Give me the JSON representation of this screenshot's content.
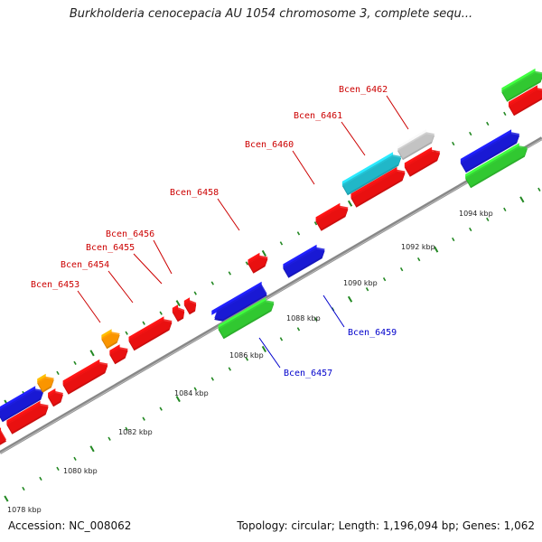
{
  "title": "Burkholderia cenocepacia AU 1054 chromosome 3, complete sequ...",
  "footer": {
    "accession": "Accession: NC_008062",
    "summary": "Topology: circular; Length: 1,196,094 bp; Genes: 1,062"
  },
  "colors": {
    "red": "#ee1111",
    "blue": "#1a1ad8",
    "green": "#33cc33",
    "orange": "#ff9900",
    "cyan": "#22bbcc",
    "gray": "#c8c8c8",
    "backbone": "#888888",
    "tick": "#228822",
    "label_red": "#cc0000",
    "label_blue": "#0000cc"
  },
  "chart_data": {
    "type": "genome-map",
    "axis": {
      "unit": "kbp",
      "tick_labels": [
        "1078 kbp",
        "1080 kbp",
        "1082 kbp",
        "1084 kbp",
        "1086 kbp",
        "1088 kbp",
        "1090 kbp",
        "1092 kbp",
        "1094 kbp"
      ]
    },
    "labels": [
      {
        "text": "Bcen_6453",
        "color": "label_red"
      },
      {
        "text": "Bcen_6454",
        "color": "label_red"
      },
      {
        "text": "Bcen_6455",
        "color": "label_red"
      },
      {
        "text": "Bcen_6456",
        "color": "label_red"
      },
      {
        "text": "Bcen_6458",
        "color": "label_red"
      },
      {
        "text": "Bcen_6460",
        "color": "label_red"
      },
      {
        "text": "Bcen_6461",
        "color": "label_red"
      },
      {
        "text": "Bcen_6462",
        "color": "label_red"
      },
      {
        "text": "Bcen_6457",
        "color": "label_blue"
      },
      {
        "text": "Bcen_6459",
        "color": "label_blue"
      }
    ]
  }
}
